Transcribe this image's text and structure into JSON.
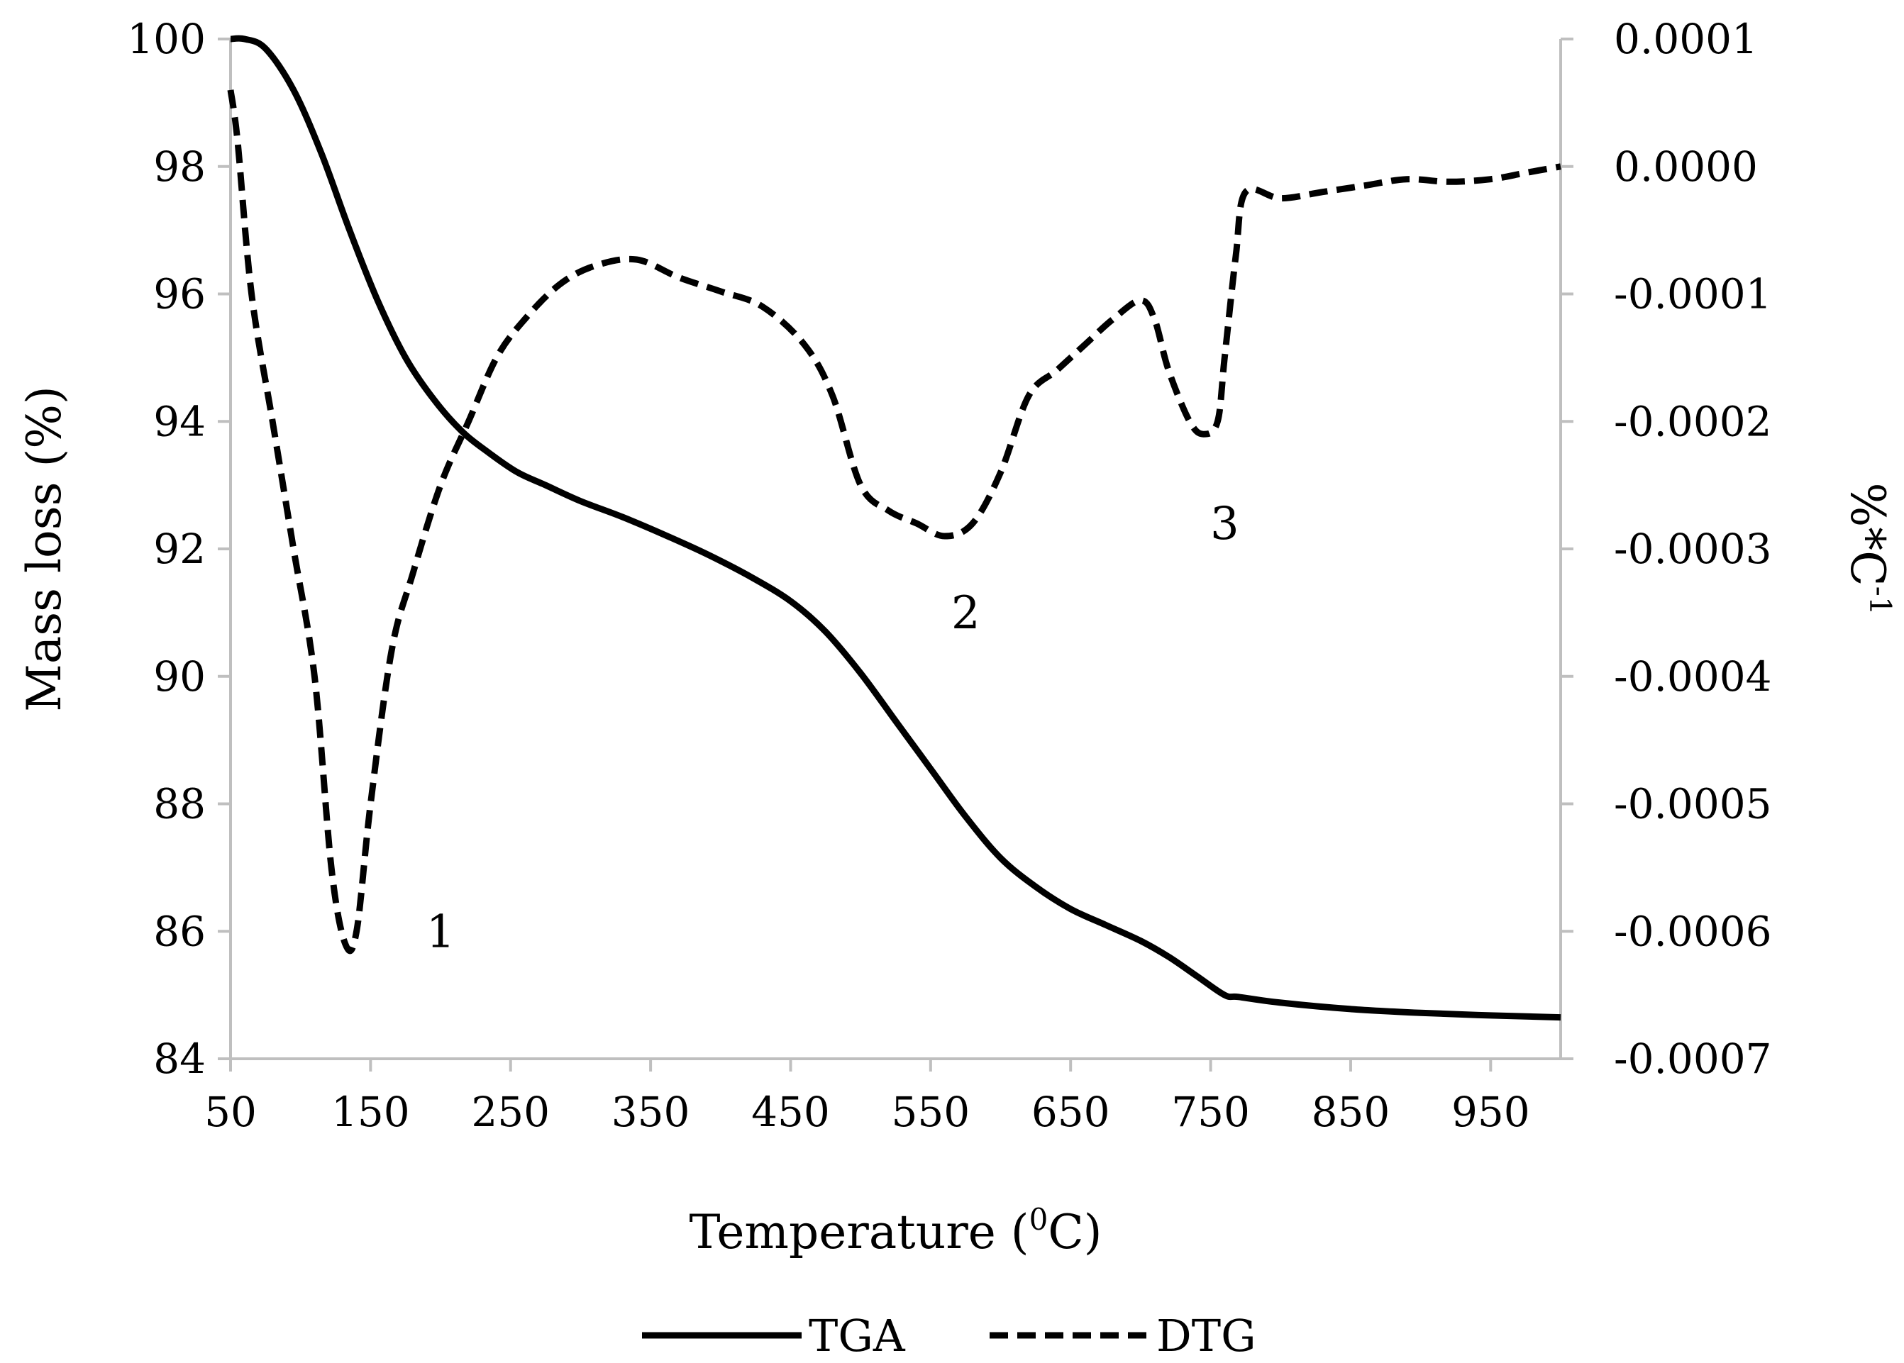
{
  "chart_data": {
    "type": "line",
    "title": "",
    "xlabel": "Temperature (",
    "xlabel_sup": "0",
    "xlabel_tail": "C)",
    "ylabel": "Mass loss (%)",
    "y2label": "%*C",
    "y2label_sup": "-1",
    "xlim": [
      50,
      1000
    ],
    "ylim": [
      84,
      100
    ],
    "y2lim": [
      -0.0007,
      0.0001
    ],
    "xticks": [
      "50",
      "150",
      "250",
      "350",
      "450",
      "550",
      "650",
      "750",
      "850",
      "950"
    ],
    "yticks": [
      "84",
      "86",
      "88",
      "90",
      "92",
      "94",
      "96",
      "98",
      "100"
    ],
    "y2ticks": [
      "-0.0007",
      "-0.0006",
      "-0.0005",
      "-0.0004",
      "-0.0003",
      "-0.0002",
      "-0.0001",
      "0.0000",
      "0.0001"
    ],
    "legend_position": "bottom",
    "series": [
      {
        "name": "TGA",
        "axis": "left",
        "style": "solid",
        "x": [
          50,
          60,
          75,
          95,
          115,
          135,
          155,
          175,
          195,
          215,
          235,
          255,
          275,
          300,
          330,
          360,
          390,
          420,
          450,
          475,
          500,
          525,
          550,
          575,
          600,
          625,
          650,
          675,
          700,
          720,
          740,
          760,
          770,
          800,
          850,
          900,
          950,
          1000
        ],
        "values": [
          100,
          100,
          99.85,
          99.2,
          98.2,
          97.0,
          95.9,
          95.0,
          94.35,
          93.85,
          93.5,
          93.2,
          93.0,
          92.75,
          92.5,
          92.22,
          91.92,
          91.58,
          91.18,
          90.7,
          90.05,
          89.3,
          88.55,
          87.8,
          87.15,
          86.7,
          86.35,
          86.1,
          85.85,
          85.6,
          85.3,
          85.0,
          84.97,
          84.88,
          84.78,
          84.72,
          84.68,
          84.65
        ]
      },
      {
        "name": "DTG",
        "axis": "right",
        "style": "dashed",
        "x": [
          50,
          55,
          65,
          80,
          95,
          110,
          122,
          132,
          140,
          150,
          165,
          180,
          200,
          220,
          240,
          260,
          285,
          310,
          340,
          370,
          400,
          430,
          460,
          480,
          500,
          520,
          540,
          560,
          580,
          600,
          620,
          640,
          660,
          680,
          700,
          710,
          720,
          735,
          745,
          755,
          760,
          768,
          775,
          800,
          830,
          860,
          890,
          920,
          950,
          975,
          1000
        ],
        "values": [
          6e-05,
          2e-05,
          -0.0001,
          -0.0002,
          -0.0003,
          -0.0004,
          -0.00055,
          -0.00061,
          -0.0006,
          -0.0005,
          -0.00038,
          -0.00032,
          -0.00025,
          -0.0002,
          -0.00015,
          -0.00012,
          -9.26e-05,
          -7.8e-05,
          -7.3e-05,
          -8.7e-05,
          -9.8e-05,
          -0.00011,
          -0.00014,
          -0.00018,
          -0.00025,
          -0.00027,
          -0.00028,
          -0.00029,
          -0.00028,
          -0.00024,
          -0.00018,
          -0.00016,
          -0.00014,
          -0.00012,
          -0.000105,
          -0.00012,
          -0.00016,
          -0.0002,
          -0.00021,
          -0.0002,
          -0.00015,
          -7e-05,
          -2e-05,
          -2.5e-05,
          -2e-05,
          -1.5e-05,
          -1e-05,
          -1.2e-05,
          -1e-05,
          -5e-06,
          0.0
        ]
      }
    ],
    "annotations": [
      {
        "label": "1",
        "x": 200,
        "y": 86.0,
        "axis": "left"
      },
      {
        "label": "2",
        "x": 575,
        "y": 91.0,
        "axis": "left"
      },
      {
        "label": "3",
        "x": 760,
        "y": 92.4,
        "axis": "left"
      }
    ]
  }
}
